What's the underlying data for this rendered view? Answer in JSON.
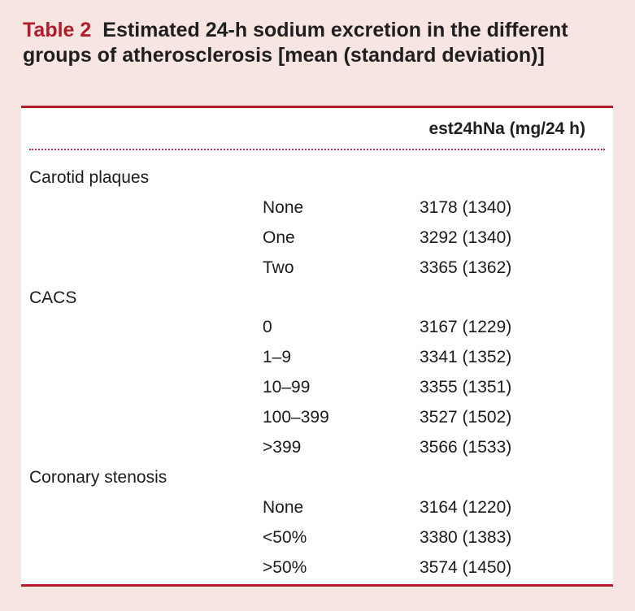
{
  "caption": {
    "label": "Table 2",
    "text": "Estimated 24-h sodium excretion in the different groups of atherosclerosis [mean (standard deviation)]"
  },
  "table": {
    "column_header": "est24hNa (mg/24 h)",
    "rows": [
      {
        "group": "Carotid plaques",
        "level": "",
        "value": ""
      },
      {
        "group": "",
        "level": "None",
        "value": "3178 (1340)"
      },
      {
        "group": "",
        "level": "One",
        "value": "3292 (1340)"
      },
      {
        "group": "",
        "level": "Two",
        "value": "3365 (1362)"
      },
      {
        "group": "CACS",
        "level": "",
        "value": ""
      },
      {
        "group": "",
        "level": "0",
        "value": "3167 (1229)"
      },
      {
        "group": "",
        "level": "1–9",
        "value": "3341 (1352)"
      },
      {
        "group": "",
        "level": "10–99",
        "value": "3355 (1351)"
      },
      {
        "group": "",
        "level": "100–399",
        "value": "3527 (1502)"
      },
      {
        "group": "",
        "level": ">399",
        "value": "3566 (1533)"
      },
      {
        "group": "Coronary stenosis",
        "level": "",
        "value": ""
      },
      {
        "group": "",
        "level": "None",
        "value": "3164 (1220)"
      },
      {
        "group": "",
        "level": "<50%",
        "value": "3380 (1383)"
      },
      {
        "group": "",
        "level": ">50%",
        "value": "3574 (1450)"
      }
    ]
  },
  "colors": {
    "accent": "#b01e2c",
    "caption_background": "#f6e5e1",
    "table_background": "#ffffff"
  }
}
